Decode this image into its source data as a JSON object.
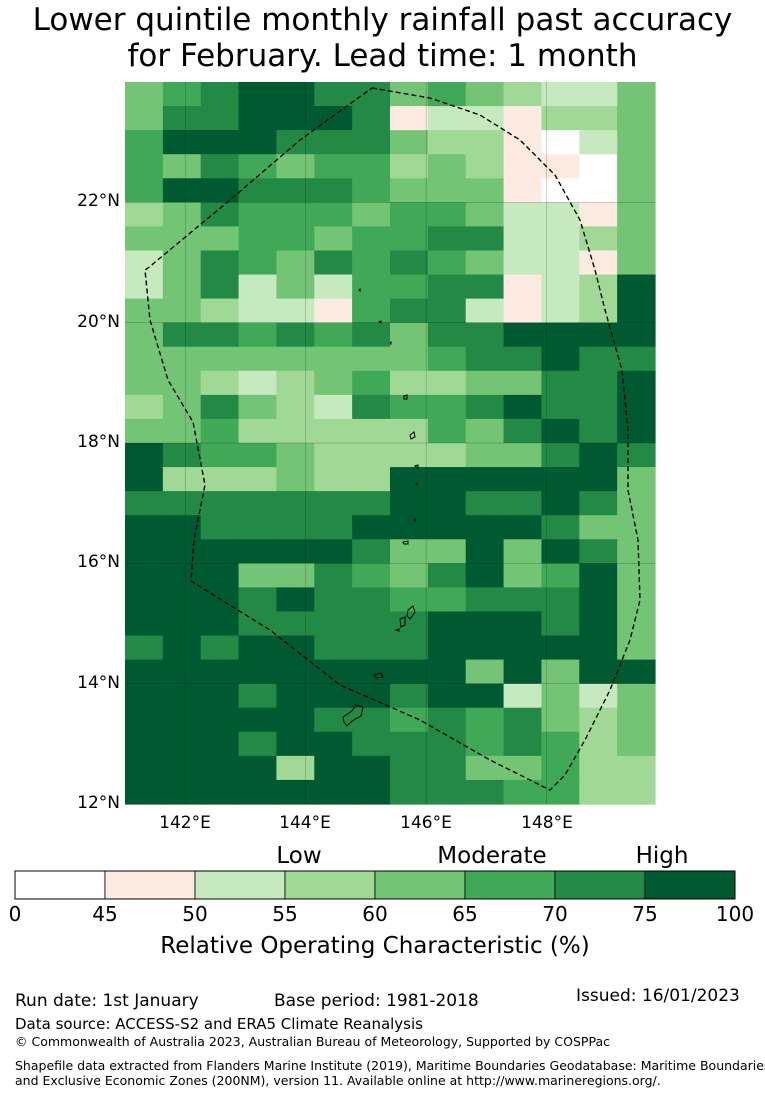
{
  "title": {
    "line1": "Lower quintile monthly rainfall past accuracy",
    "line2": "for February. Lead time: 1 month"
  },
  "map": {
    "lat_ticks": [
      "22°N",
      "20°N",
      "18°N",
      "16°N",
      "14°N",
      "12°N"
    ],
    "lon_ticks": [
      "142°E",
      "144°E",
      "146°E",
      "148°E"
    ],
    "lat_range": [
      12,
      24
    ],
    "lon_range": [
      141,
      149.8
    ],
    "grid": [
      "45677664543224",
      "46677761221334",
      "57776664331024",
      "54654553431104",
      "57766654441004",
      "34655545542214",
      "44455455662234",
      "24654656542214",
      "24624255661237",
      "44322156621237",
      "46656564667777",
      "44444444566766",
      "44323453344667",
      "34643265567667",
      "44533333546767",
      "76554333344676",
      "73334337777774",
      "66666667766764",
      "77666677777644",
      "77777764474764",
      "77744654674574",
      "77767665566674",
      "77766666777674",
      "67677666777774",
      "77777777747477",
      "77767776772424",
      "77777665656434",
      "77767766656534",
      "77773776644533",
      "77777776665533"
    ],
    "colors": {
      "0": "#ffffff",
      "1": "#fdebe2",
      "2": "#c6e9c0",
      "3": "#a0d995",
      "4": "#74c476",
      "5": "#40a957",
      "6": "#228a45",
      "7": "#005a31"
    }
  },
  "colorbar": {
    "categories": [
      "Low",
      "Moderate",
      "High"
    ],
    "ticks": [
      "0",
      "45",
      "50",
      "55",
      "60",
      "65",
      "70",
      "75",
      "100"
    ],
    "colors": [
      "#ffffff",
      "#fdebe2",
      "#c6e9c0",
      "#a0d995",
      "#74c476",
      "#40a957",
      "#228a45",
      "#005a31"
    ],
    "label": "Relative Operating Characteristic (%)"
  },
  "footer": {
    "run_date": "Run date: 1st January",
    "base_period": "Base period: 1981-2018",
    "issued": "Issued: 16/01/2023",
    "data_source": "Data source: ACCESS-S2 and ERA5 Climate Reanalysis",
    "copyright": "© Commonwealth of Australia 2023, Australian Bureau of Meteorology, Supported by COSPPac",
    "shapefile_line1": "Shapefile data extracted from Flanders Marine Institute (2019), Maritime Boundaries Geodatabase: Maritime Boundaries",
    "shapefile_line2": "and Exclusive Economic Zones (200NM), version 11. Available online at http://www.marineregions.org/."
  }
}
